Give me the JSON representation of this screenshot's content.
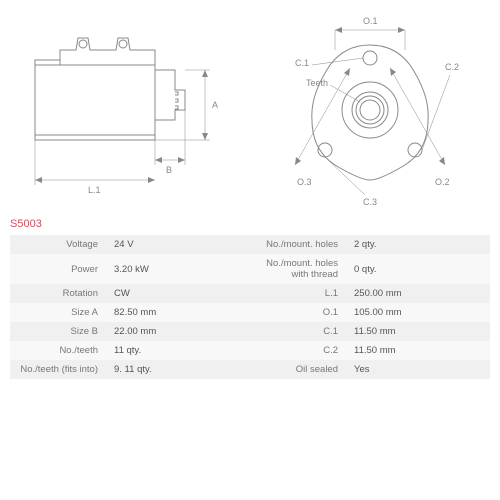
{
  "part_number": "S5003",
  "side_view": {
    "labels": {
      "A": "A",
      "B": "B",
      "L1": "L.1"
    },
    "stroke_color": "#888888"
  },
  "front_view": {
    "labels": {
      "O1": "O.1",
      "O2": "O.2",
      "O3": "O.3",
      "C1": "C.1",
      "C2": "C.2",
      "C3": "C.3",
      "Teeth": "Teeth"
    },
    "stroke_color": "#888888"
  },
  "specs": [
    {
      "label1": "Voltage",
      "value1": "24 V",
      "label2": "No./mount. holes",
      "value2": "2 qty."
    },
    {
      "label1": "Power",
      "value1": "3.20 kW",
      "label2": "No./mount. holes with thread",
      "value2": "0 qty."
    },
    {
      "label1": "Rotation",
      "value1": "CW",
      "label2": "L.1",
      "value2": "250.00 mm"
    },
    {
      "label1": "Size A",
      "value1": "82.50 mm",
      "label2": "O.1",
      "value2": "105.00 mm"
    },
    {
      "label1": "Size B",
      "value1": "22.00 mm",
      "label2": "C.1",
      "value2": "11.50 mm"
    },
    {
      "label1": "No./teeth",
      "value1": "11 qty.",
      "label2": "C.2",
      "value2": "11.50 mm"
    },
    {
      "label1": "No./teeth (fits into)",
      "value1": "9. 11 qty.",
      "label2": "Oil sealed",
      "value2": "Yes"
    }
  ],
  "colors": {
    "row_bg_odd": "#f0f0f0",
    "row_bg_even": "#f8f8f8",
    "text": "#555555",
    "label_text": "#777777",
    "accent": "#d94a5a"
  }
}
